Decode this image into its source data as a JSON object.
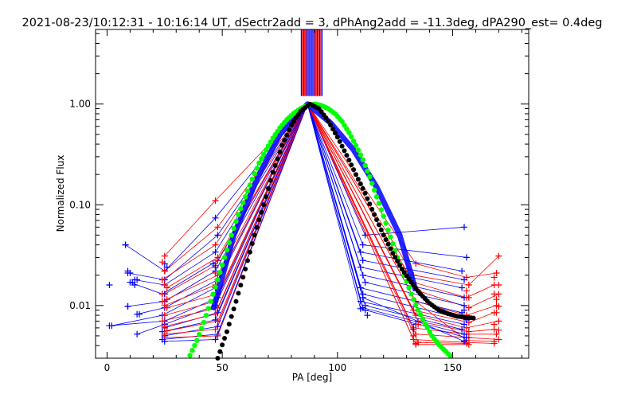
{
  "chart_data": {
    "type": "line",
    "title": "2021-08-23/10:12:31 - 10:16:14 UT, dSectr2add = 3, dPhAng2add = -11.3deg, dPA290_est=  0.4deg",
    "xlabel": "PA [deg]",
    "ylabel": "Normalized Flux",
    "xlim": [
      -5,
      183
    ],
    "ylim": [
      0.003,
      5.5
    ],
    "yscale": "log",
    "x_ticks": [
      {
        "value": 0,
        "label": "0"
      },
      {
        "value": 50,
        "label": "50"
      },
      {
        "value": 100,
        "label": "100"
      },
      {
        "value": 150,
        "label": "150"
      }
    ],
    "y_ticks": [
      {
        "value": 0.01,
        "label": "0.01"
      },
      {
        "value": 0.1,
        "label": "0.10"
      },
      {
        "value": 1.0,
        "label": "1.00"
      }
    ],
    "grid": false,
    "legend": "none",
    "colors": {
      "red": "#ff0000",
      "blue": "#0000ff",
      "black": "#000000",
      "green": "#00ff00"
    },
    "vertical_markers": {
      "y_from": 1.2,
      "y_to": 5.5,
      "x_red": [
        84.8,
        85.8,
        86.8,
        87.8,
        88.8,
        89.8,
        90.8,
        91.8,
        92.8
      ],
      "x_blue": [
        84.3,
        85.3,
        86.3,
        87.3,
        88.3,
        89.3,
        90.3,
        91.3,
        92.3,
        93.3
      ]
    },
    "series": [
      {
        "color": "red",
        "x": [
          25,
          47,
          87,
          134,
          156,
          168
        ],
        "y": [
          0.031,
          0.11,
          1.0,
          0.011,
          0.0045,
          0.0044
        ]
      },
      {
        "color": "blue",
        "x": [
          8,
          25,
          47,
          87,
          112,
          155
        ],
        "y": [
          0.04,
          0.022,
          0.074,
          1.0,
          0.05,
          0.06
        ]
      },
      {
        "color": "red",
        "x": [
          25,
          48,
          87,
          133,
          157,
          170
        ],
        "y": [
          0.022,
          0.06,
          1.0,
          0.02,
          0.016,
          0.031
        ]
      },
      {
        "color": "blue",
        "x": [
          9,
          25,
          48,
          87,
          111,
          156
        ],
        "y": [
          0.021,
          0.018,
          0.05,
          1.0,
          0.04,
          0.03
        ]
      },
      {
        "color": "red",
        "x": [
          24,
          47,
          87,
          134,
          156,
          169
        ],
        "y": [
          0.018,
          0.04,
          1.0,
          0.026,
          0.019,
          0.021
        ]
      },
      {
        "color": "blue",
        "x": [
          12,
          25,
          47,
          87,
          110,
          154
        ],
        "y": [
          0.018,
          0.016,
          0.034,
          1.0,
          0.034,
          0.022
        ]
      },
      {
        "color": "red",
        "x": [
          26,
          48,
          87,
          133,
          156,
          168
        ],
        "y": [
          0.015,
          0.03,
          1.0,
          0.017,
          0.012,
          0.016
        ]
      },
      {
        "color": "blue",
        "x": [
          10,
          24,
          48,
          87,
          111,
          155
        ],
        "y": [
          0.017,
          0.013,
          0.028,
          1.0,
          0.028,
          0.018
        ]
      },
      {
        "color": "red",
        "x": [
          25,
          47,
          87,
          135,
          157,
          170
        ],
        "y": [
          0.013,
          0.025,
          1.0,
          0.014,
          0.0095,
          0.013
        ]
      },
      {
        "color": "blue",
        "x": [
          9,
          25,
          47,
          87,
          110,
          154
        ],
        "y": [
          0.0098,
          0.011,
          0.022,
          1.0,
          0.024,
          0.015
        ]
      },
      {
        "color": "red",
        "x": [
          24,
          48,
          87,
          134,
          156,
          169
        ],
        "y": [
          0.011,
          0.02,
          1.0,
          0.011,
          0.008,
          0.01
        ]
      },
      {
        "color": "blue",
        "x": [
          13,
          25,
          48,
          87,
          111,
          155
        ],
        "y": [
          0.0082,
          0.0095,
          0.018,
          1.0,
          0.02,
          0.012
        ]
      },
      {
        "color": "red",
        "x": [
          25,
          47,
          87,
          133,
          157,
          168
        ],
        "y": [
          0.01,
          0.016,
          1.0,
          0.009,
          0.0068,
          0.0085
        ]
      },
      {
        "color": "blue",
        "x": [
          2,
          24,
          47,
          87,
          112,
          155
        ],
        "y": [
          0.0063,
          0.008,
          0.015,
          1.0,
          0.017,
          0.01
        ]
      },
      {
        "color": "red",
        "x": [
          26,
          48,
          87,
          134,
          156,
          170
        ],
        "y": [
          0.0095,
          0.013,
          1.0,
          0.008,
          0.006,
          0.007
        ]
      },
      {
        "color": "blue",
        "x": [
          1,
          25,
          48,
          87,
          110,
          154
        ],
        "y": [
          0.0063,
          0.007,
          0.012,
          1.0,
          0.015,
          0.0085
        ]
      },
      {
        "color": "red",
        "x": [
          25,
          47,
          87,
          135,
          157,
          168
        ],
        "y": [
          0.008,
          0.011,
          1.0,
          0.007,
          0.0055,
          0.0058
        ]
      },
      {
        "color": "blue",
        "x": [
          13,
          25,
          47,
          87,
          111,
          156
        ],
        "y": [
          0.0052,
          0.0065,
          0.01,
          1.0,
          0.013,
          0.0072
        ]
      },
      {
        "color": "red",
        "x": [
          24,
          48,
          87,
          133,
          156,
          169
        ],
        "y": [
          0.007,
          0.0095,
          1.0,
          0.006,
          0.0052,
          0.0052
        ]
      },
      {
        "color": "blue",
        "x": [
          25,
          48,
          87,
          110,
          155
        ],
        "y": [
          0.006,
          0.0085,
          1.0,
          0.011,
          0.0065
        ]
      },
      {
        "color": "red",
        "x": [
          25,
          47,
          87,
          134,
          157,
          170
        ],
        "y": [
          0.0062,
          0.0082,
          1.0,
          0.0052,
          0.0048,
          0.0046
        ]
      },
      {
        "color": "blue",
        "x": [
          24,
          47,
          87,
          112,
          154
        ],
        "y": [
          0.0055,
          0.0072,
          1.0,
          0.01,
          0.0058
        ]
      },
      {
        "color": "red",
        "x": [
          26,
          48,
          87,
          133,
          156,
          168
        ],
        "y": [
          0.0056,
          0.007,
          1.0,
          0.0046,
          0.0043,
          0.0042
        ]
      },
      {
        "color": "blue",
        "x": [
          25,
          48,
          87,
          111,
          155
        ],
        "y": [
          0.005,
          0.0062,
          1.0,
          0.0095,
          0.0052
        ]
      },
      {
        "color": "red",
        "x": [
          25,
          47,
          87,
          135,
          156
        ],
        "y": [
          0.0052,
          0.0058,
          1.0,
          0.0043,
          0.0042
        ]
      },
      {
        "color": "blue",
        "x": [
          24,
          48,
          87,
          110,
          156
        ],
        "y": [
          0.0046,
          0.0052,
          1.0,
          0.0093,
          0.0048
        ]
      },
      {
        "color": "red",
        "x": [
          25,
          48,
          87,
          134,
          157
        ],
        "y": [
          0.0048,
          0.005,
          1.0,
          0.0041,
          0.0041
        ]
      },
      {
        "color": "blue",
        "x": [
          25,
          47,
          87,
          111,
          155
        ],
        "y": [
          0.0044,
          0.0046,
          1.0,
          0.012,
          0.0044
        ]
      }
    ],
    "markers": {
      "blue": [
        [
          1,
          0.016
        ],
        [
          8,
          0.04
        ],
        [
          10,
          0.021
        ],
        [
          9,
          0.022
        ],
        [
          11,
          0.017
        ],
        [
          13,
          0.018
        ],
        [
          12,
          0.016
        ],
        [
          9,
          0.0098
        ],
        [
          14,
          0.0082
        ],
        [
          25,
          0.026
        ],
        [
          26,
          0.024
        ],
        [
          25,
          0.013
        ],
        [
          46,
          0.026
        ],
        [
          47,
          0.024
        ],
        [
          112,
          0.009
        ],
        [
          113,
          0.008
        ],
        [
          134,
          0.0065
        ],
        [
          133,
          0.0058
        ],
        [
          155,
          0.009
        ],
        [
          156,
          0.0048
        ]
      ],
      "red": [
        [
          24,
          0.027
        ],
        [
          25,
          0.022
        ],
        [
          25,
          0.016
        ],
        [
          24,
          0.013
        ],
        [
          26,
          0.0115
        ],
        [
          48,
          0.028
        ],
        [
          47,
          0.021
        ],
        [
          133,
          0.005
        ],
        [
          134,
          0.0042
        ],
        [
          135,
          0.0065
        ],
        [
          156,
          0.014
        ],
        [
          157,
          0.012
        ],
        [
          168,
          0.019
        ],
        [
          170,
          0.016
        ],
        [
          168,
          0.013
        ],
        [
          169,
          0.0115
        ],
        [
          170,
          0.0098
        ],
        [
          169,
          0.0085
        ],
        [
          168,
          0.0065
        ],
        [
          170,
          0.0057
        ]
      ]
    },
    "blue_band": {
      "x": [
        46,
        55,
        65,
        75,
        87,
        97,
        107,
        117,
        127,
        134
      ],
      "y": [
        0.009,
        0.05,
        0.18,
        0.5,
        1.0,
        0.65,
        0.35,
        0.15,
        0.05,
        0.014
      ]
    },
    "black_curve": {
      "x": [
        48,
        52,
        56,
        60,
        64,
        68,
        72,
        76,
        80,
        84,
        88,
        92,
        96,
        100,
        104,
        108,
        112,
        116,
        120,
        124,
        128,
        132,
        136,
        140,
        144,
        148,
        152,
        156,
        160
      ],
      "y": [
        0.003,
        0.0055,
        0.011,
        0.023,
        0.05,
        0.1,
        0.21,
        0.39,
        0.62,
        0.85,
        1.0,
        0.9,
        0.68,
        0.47,
        0.31,
        0.2,
        0.13,
        0.08,
        0.05,
        0.033,
        0.023,
        0.017,
        0.013,
        0.0105,
        0.009,
        0.0083,
        0.0078,
        0.0076,
        0.0075
      ]
    },
    "green_curve": {
      "x": [
        36,
        39,
        42,
        45,
        48,
        51,
        54,
        57,
        60,
        63,
        66,
        69,
        72,
        75,
        78,
        81,
        84,
        87,
        90,
        93,
        96,
        99,
        102,
        105,
        108,
        111,
        114,
        117,
        120,
        123,
        126,
        129,
        132,
        135,
        138,
        141,
        144,
        147,
        150
      ],
      "y": [
        0.0032,
        0.0045,
        0.0068,
        0.011,
        0.018,
        0.03,
        0.05,
        0.08,
        0.12,
        0.18,
        0.26,
        0.35,
        0.46,
        0.58,
        0.7,
        0.81,
        0.9,
        0.97,
        1.0,
        0.97,
        0.9,
        0.8,
        0.67,
        0.52,
        0.39,
        0.28,
        0.19,
        0.12,
        0.077,
        0.048,
        0.03,
        0.02,
        0.013,
        0.009,
        0.0066,
        0.005,
        0.0041,
        0.0035,
        0.003
      ]
    }
  }
}
